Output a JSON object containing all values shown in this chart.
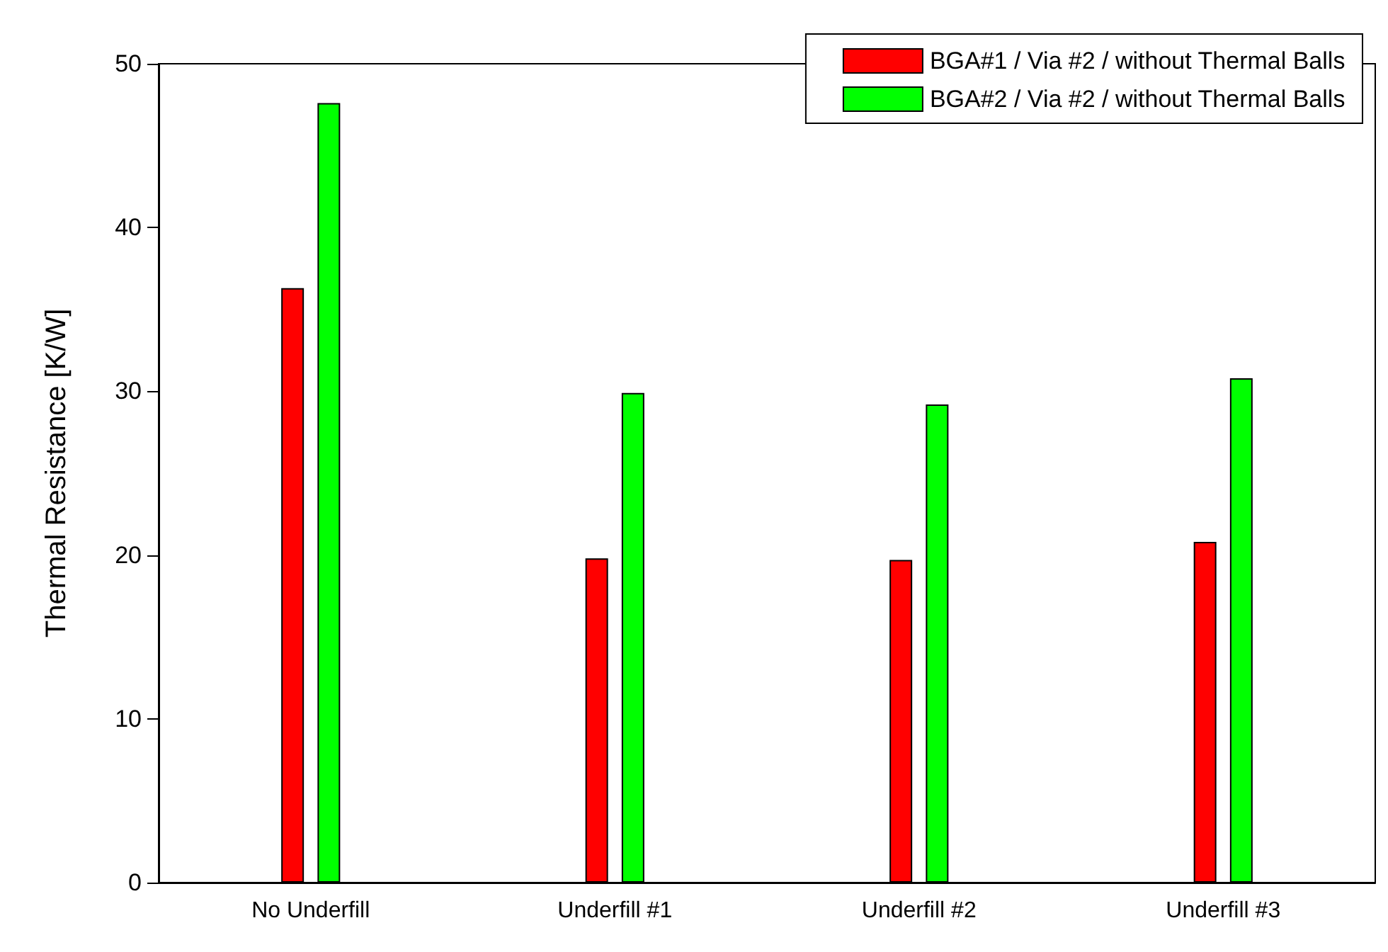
{
  "chart_data": {
    "type": "bar",
    "ylabel": "Thermal Resistance [K/W]",
    "categories": [
      "No Underfill",
      "Underfill #1",
      "Underfill #2",
      "Underfill #3"
    ],
    "series": [
      {
        "name": "BGA#1 / Via #2 / without Thermal Balls",
        "color": "#ff0000",
        "values": [
          36.3,
          19.8,
          19.7,
          20.8
        ]
      },
      {
        "name": "BGA#2 / Via #2 / without Thermal Balls",
        "color": "#00ff00",
        "values": [
          47.6,
          29.9,
          29.2,
          30.8
        ]
      }
    ],
    "ylim": [
      0,
      50
    ],
    "yticks": [
      0,
      10,
      20,
      30,
      40,
      50
    ],
    "grid": false,
    "legend": "top right"
  }
}
